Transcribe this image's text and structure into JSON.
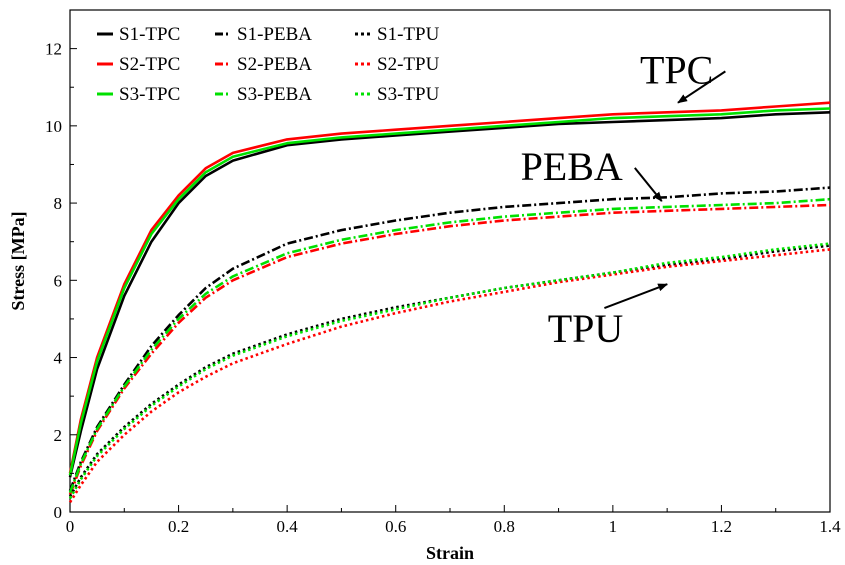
{
  "chart_data": {
    "type": "line",
    "title": "",
    "xlabel": "Strain",
    "ylabel": "Stress [MPa]",
    "xlim": [
      0,
      1.4
    ],
    "ylim": [
      0,
      13
    ],
    "xticks": [
      "0",
      "0.2",
      "0.4",
      "0.6",
      "0.8",
      "1",
      "1.2",
      "1.4"
    ],
    "yticks": [
      "0",
      "2",
      "4",
      "6",
      "8",
      "10",
      "12"
    ],
    "grid": false,
    "legend_position": "top-left",
    "x": [
      0,
      0.02,
      0.05,
      0.1,
      0.15,
      0.2,
      0.25,
      0.3,
      0.4,
      0.5,
      0.6,
      0.7,
      0.8,
      0.9,
      1.0,
      1.1,
      1.2,
      1.3,
      1.4
    ],
    "series": [
      {
        "name": "S1-TPC",
        "color": "#000000",
        "style": "solid",
        "values": [
          0.9,
          2.1,
          3.7,
          5.6,
          7.0,
          8.0,
          8.7,
          9.1,
          9.5,
          9.65,
          9.75,
          9.85,
          9.95,
          10.05,
          10.1,
          10.15,
          10.2,
          10.3,
          10.35
        ]
      },
      {
        "name": "S2-TPC",
        "color": "#ff0000",
        "style": "solid",
        "values": [
          1.0,
          2.4,
          4.0,
          5.9,
          7.3,
          8.2,
          8.9,
          9.3,
          9.65,
          9.8,
          9.9,
          10.0,
          10.1,
          10.2,
          10.3,
          10.35,
          10.4,
          10.5,
          10.6
        ]
      },
      {
        "name": "S3-TPC",
        "color": "#00e000",
        "style": "solid",
        "values": [
          0.95,
          2.3,
          3.9,
          5.8,
          7.2,
          8.1,
          8.8,
          9.2,
          9.55,
          9.7,
          9.8,
          9.9,
          10.0,
          10.1,
          10.2,
          10.25,
          10.3,
          10.4,
          10.45
        ]
      },
      {
        "name": "S1-PEBA",
        "color": "#000000",
        "style": "dashdot",
        "values": [
          0.55,
          1.3,
          2.2,
          3.3,
          4.3,
          5.1,
          5.8,
          6.3,
          6.95,
          7.3,
          7.55,
          7.75,
          7.9,
          8.0,
          8.1,
          8.15,
          8.25,
          8.3,
          8.4
        ]
      },
      {
        "name": "S2-PEBA",
        "color": "#ff0000",
        "style": "dashdot",
        "values": [
          0.45,
          1.2,
          2.1,
          3.2,
          4.1,
          4.9,
          5.55,
          6.0,
          6.6,
          6.95,
          7.2,
          7.4,
          7.55,
          7.65,
          7.75,
          7.8,
          7.85,
          7.9,
          7.95
        ]
      },
      {
        "name": "S3-PEBA",
        "color": "#00e000",
        "style": "dashdot",
        "values": [
          0.5,
          1.25,
          2.15,
          3.25,
          4.2,
          5.0,
          5.65,
          6.1,
          6.7,
          7.05,
          7.3,
          7.5,
          7.65,
          7.75,
          7.85,
          7.9,
          7.95,
          8.0,
          8.1
        ]
      },
      {
        "name": "S1-TPU",
        "color": "#000000",
        "style": "dotted",
        "values": [
          0.4,
          0.9,
          1.5,
          2.2,
          2.8,
          3.3,
          3.75,
          4.1,
          4.6,
          5.0,
          5.3,
          5.55,
          5.8,
          6.0,
          6.2,
          6.4,
          6.55,
          6.75,
          6.9
        ]
      },
      {
        "name": "S2-TPU",
        "color": "#ff0000",
        "style": "dotted",
        "values": [
          0.25,
          0.7,
          1.3,
          2.0,
          2.6,
          3.1,
          3.5,
          3.85,
          4.35,
          4.8,
          5.15,
          5.45,
          5.7,
          5.95,
          6.15,
          6.35,
          6.5,
          6.65,
          6.8
        ]
      },
      {
        "name": "S3-TPU",
        "color": "#00e000",
        "style": "dotted",
        "values": [
          0.35,
          0.85,
          1.45,
          2.15,
          2.75,
          3.25,
          3.7,
          4.05,
          4.55,
          4.95,
          5.25,
          5.55,
          5.8,
          6.0,
          6.2,
          6.45,
          6.6,
          6.8,
          6.95
        ]
      }
    ],
    "annotations": [
      {
        "text": "TPC",
        "x": 1.05,
        "y": 11.1,
        "arrow_to": [
          1.12,
          10.6
        ]
      },
      {
        "text": "PEBA",
        "x": 0.83,
        "y": 8.6,
        "arrow_to": [
          1.09,
          8.05
        ]
      },
      {
        "text": "TPU",
        "x": 0.88,
        "y": 4.4,
        "arrow_to": [
          1.1,
          5.9
        ]
      }
    ]
  }
}
